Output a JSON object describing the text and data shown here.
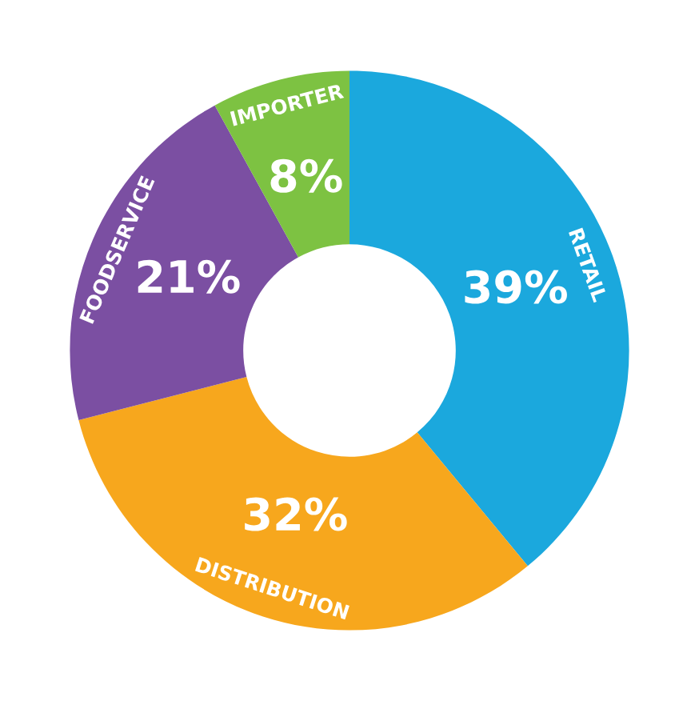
{
  "chart_data": {
    "type": "donut",
    "categories": [
      "RETAIL",
      "DISTRIBUTION",
      "FOODSERVICE",
      "IMPORTER"
    ],
    "values": [
      39,
      32,
      21,
      8
    ],
    "colors": [
      "#1ba8dd",
      "#f7a71d",
      "#7b4fa2",
      "#7dc242"
    ],
    "value_labels": [
      "39%",
      "32%",
      "21%",
      "8%"
    ]
  }
}
